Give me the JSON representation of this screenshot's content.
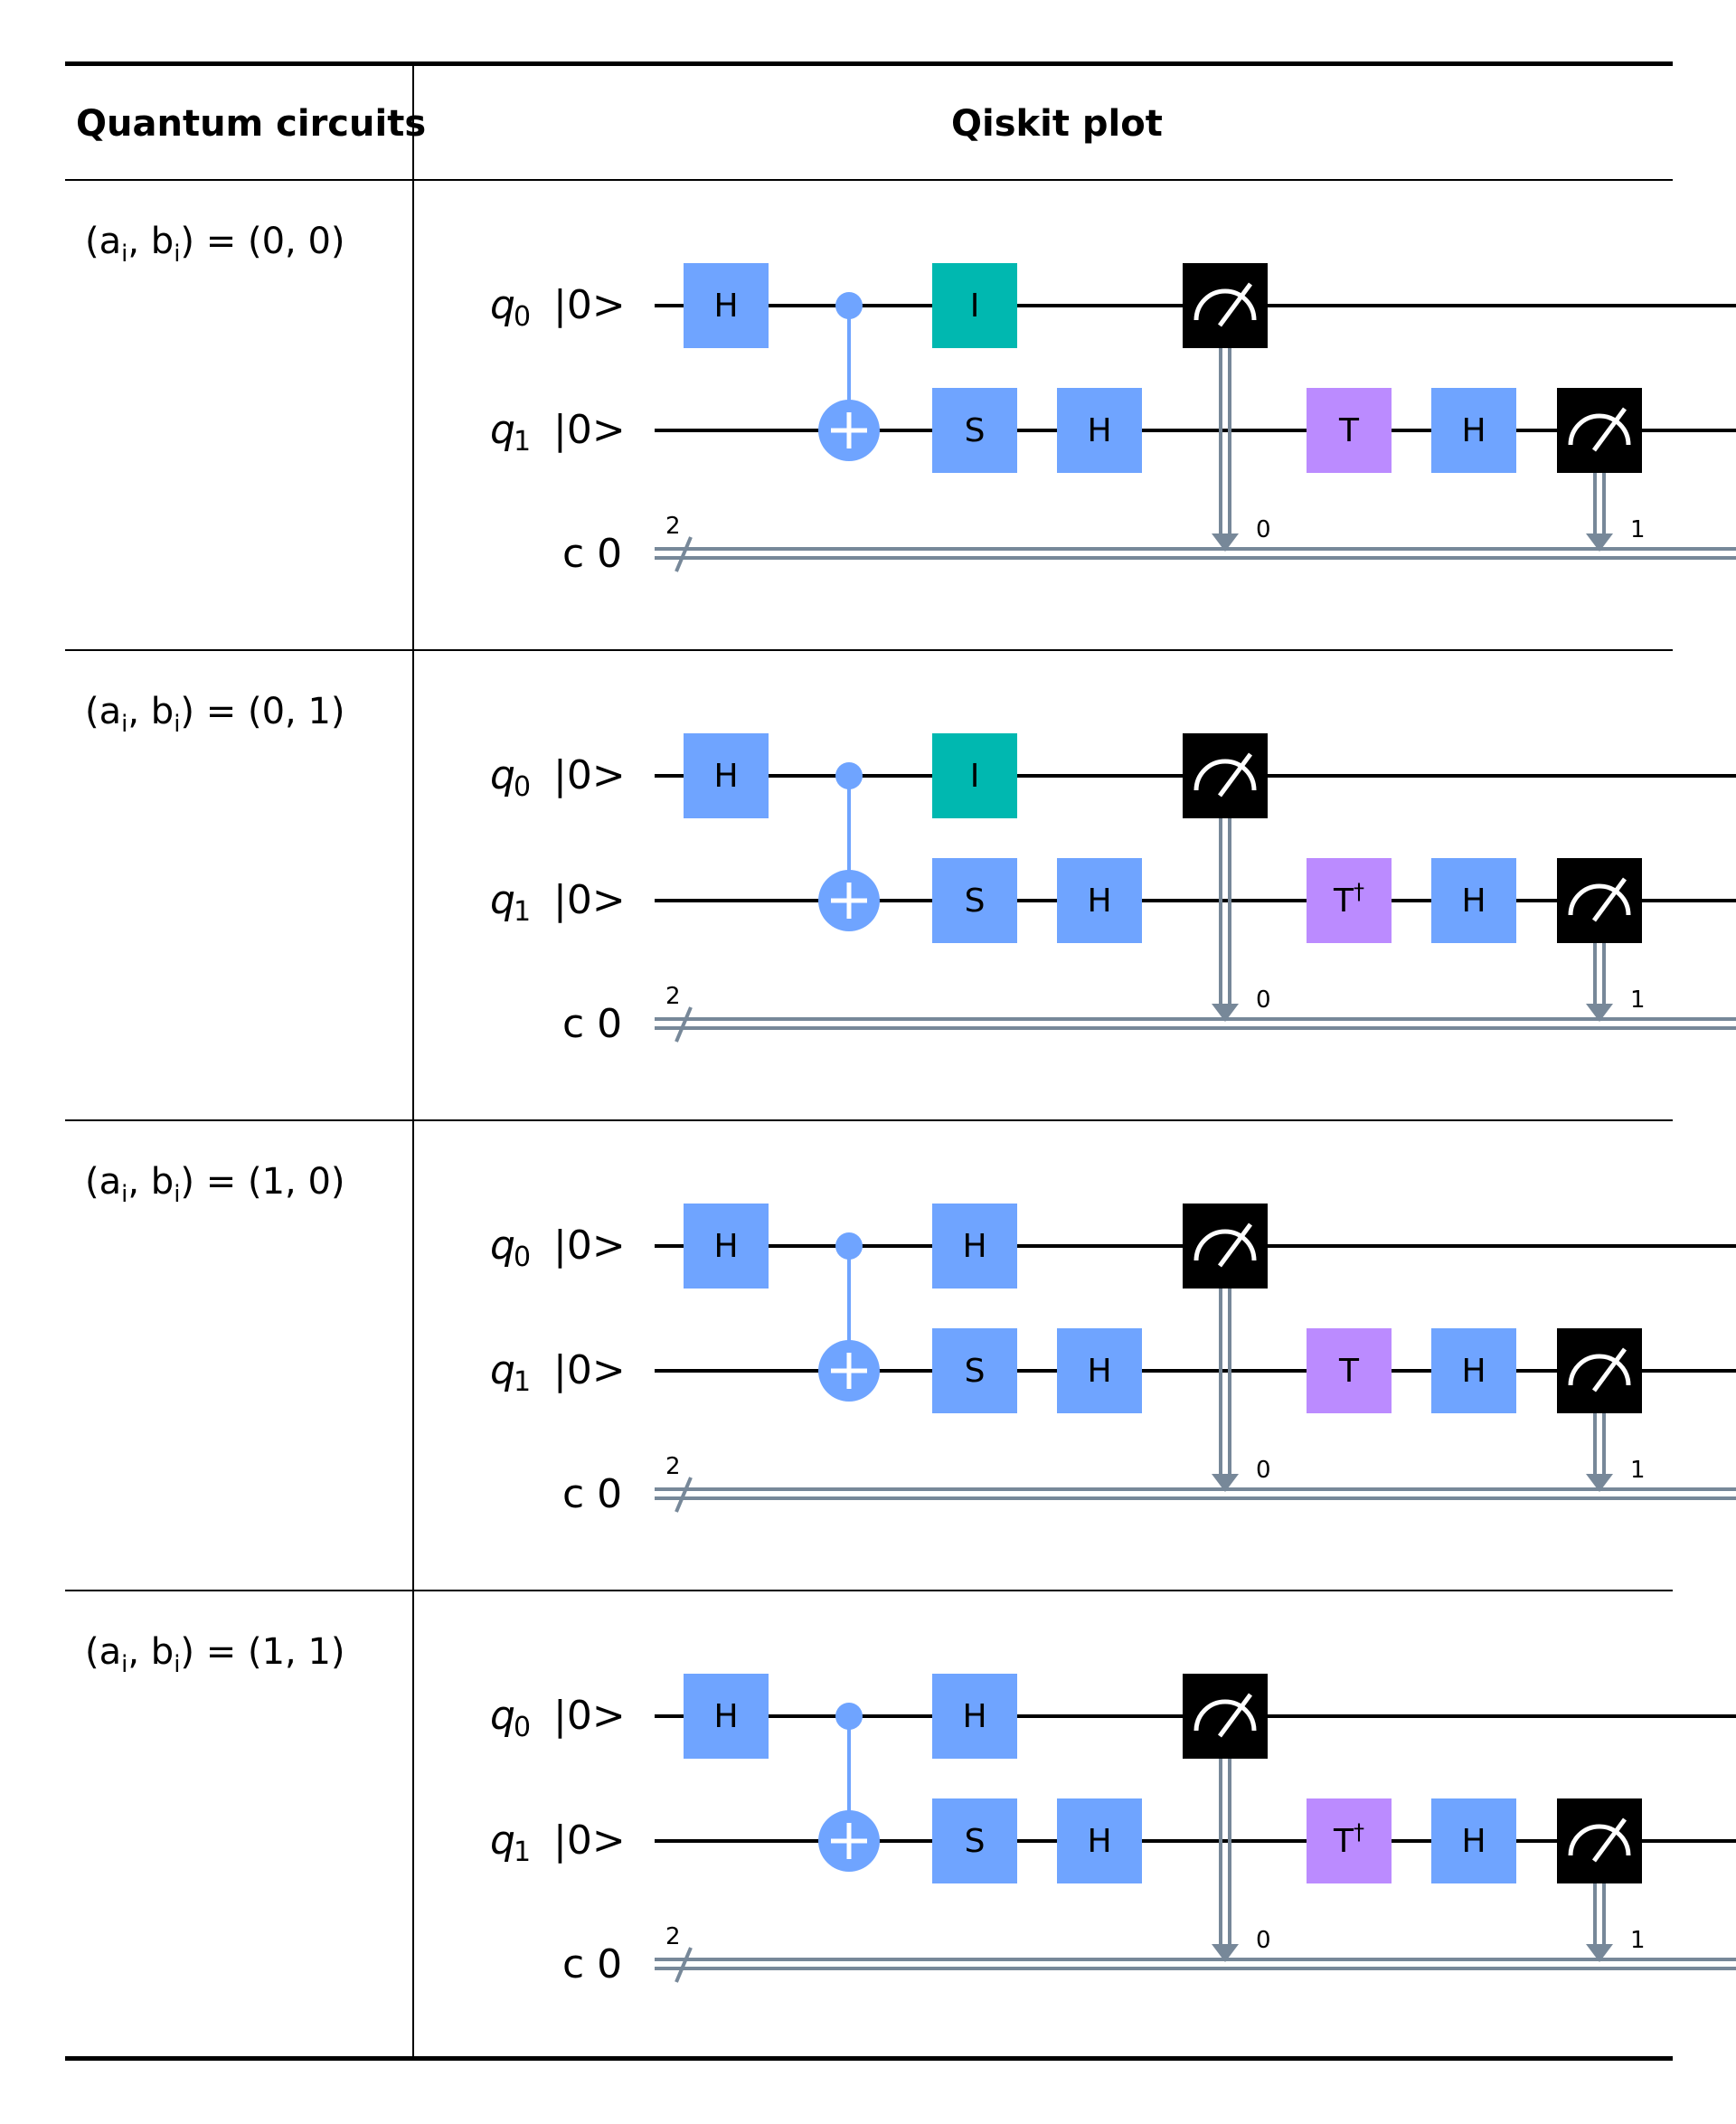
{
  "header": {
    "col1": "Quantum circuits",
    "col2": "Qiskit plot"
  },
  "colors": {
    "gate_blue": "#6fa4ff",
    "gate_identity": "#00b8b0",
    "gate_t": "#bb8bff",
    "measure": "#000000",
    "classical_wire": "#778899",
    "cnot": "#6fa4ff"
  },
  "wire_labels": {
    "q0": "q",
    "q0_sub": "0",
    "q1": "q",
    "q1_sub": "1",
    "ket": "|0>",
    "c": "c 0",
    "c_width": "2",
    "meas0": "0",
    "meas1": "1"
  },
  "rows": [
    {
      "case_prefix": "(a",
      "case_sub_a": "i",
      "case_mid": ", b",
      "case_sub_b": "i",
      "case_value": ") = (0, 0)",
      "q0_gate": "I",
      "q0_gate_kind": "identity",
      "t_gate": "T",
      "t_dagger": ""
    },
    {
      "case_prefix": "(a",
      "case_sub_a": "i",
      "case_mid": ", b",
      "case_sub_b": "i",
      "case_value": ") = (0, 1)",
      "q0_gate": "I",
      "q0_gate_kind": "identity",
      "t_gate": "T",
      "t_dagger": "†"
    },
    {
      "case_prefix": "(a",
      "case_sub_a": "i",
      "case_mid": ", b",
      "case_sub_b": "i",
      "case_value": ") = (1, 0)",
      "q0_gate": "H",
      "q0_gate_kind": "blue",
      "t_gate": "T",
      "t_dagger": ""
    },
    {
      "case_prefix": "(a",
      "case_sub_a": "i",
      "case_mid": ", b",
      "case_sub_b": "i",
      "case_value": ") = (1, 1)",
      "q0_gate": "H",
      "q0_gate_kind": "blue",
      "t_gate": "T",
      "t_dagger": "†"
    }
  ],
  "gates": {
    "h": "H",
    "s": "S"
  }
}
